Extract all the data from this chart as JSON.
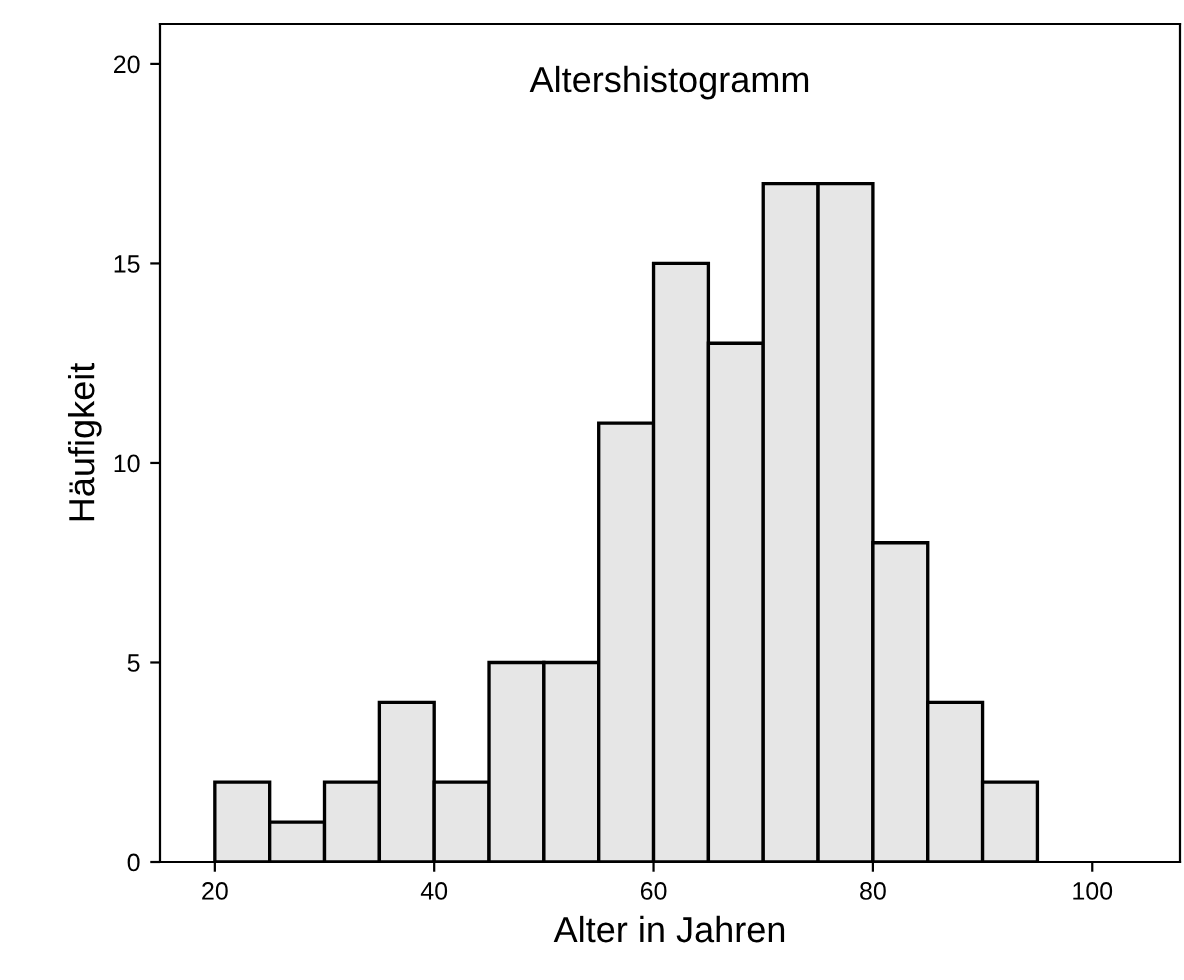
{
  "chart_data": {
    "type": "histogram",
    "title": "Altershistogramm",
    "xlabel": "Alter in Jahren",
    "ylabel": "Häufigkeit",
    "bins": [
      20,
      25,
      30,
      35,
      40,
      45,
      50,
      55,
      60,
      65,
      70,
      75,
      80,
      85,
      90,
      95
    ],
    "values": [
      2,
      1,
      2,
      4,
      2,
      5,
      5,
      11,
      15,
      13,
      17,
      17,
      8,
      4,
      2
    ],
    "color": "#e6e6e6",
    "xlim": [
      15,
      108
    ],
    "xticks": [
      20,
      40,
      60,
      80,
      100
    ],
    "ylim": [
      0,
      21
    ],
    "yticks": [
      0,
      5,
      10,
      15,
      20
    ],
    "grid": false
  }
}
